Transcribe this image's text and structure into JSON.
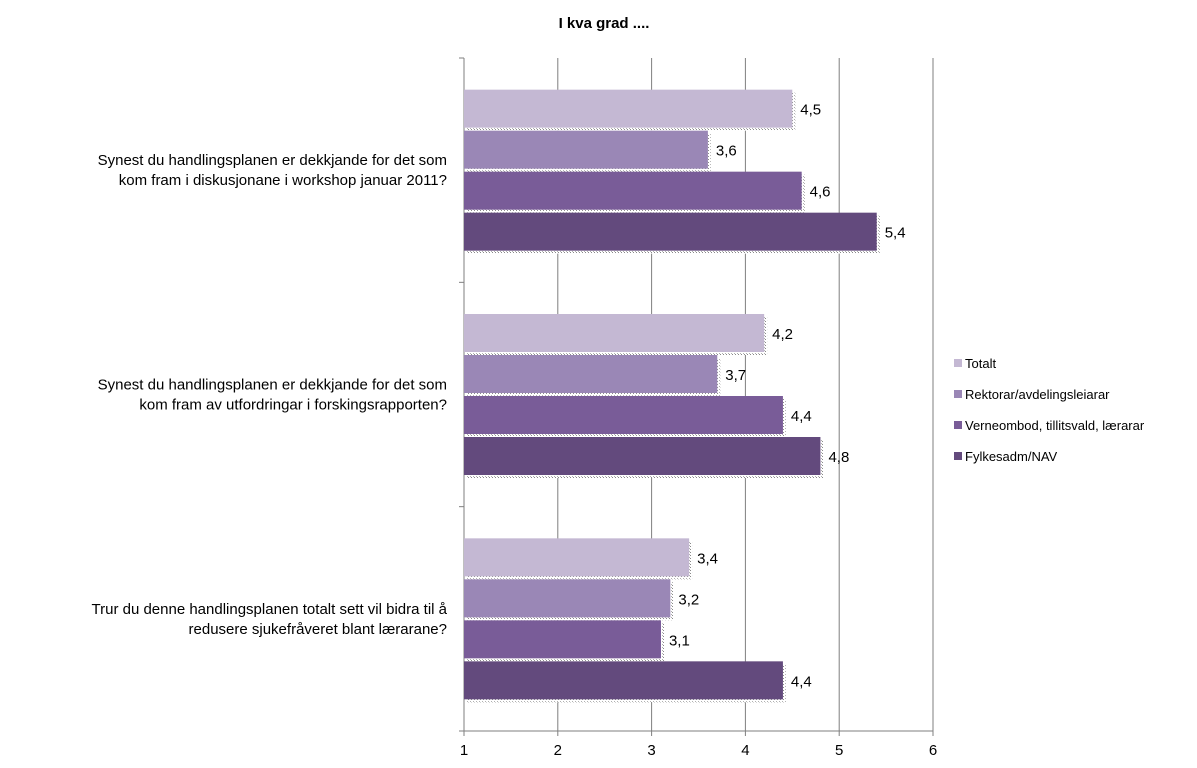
{
  "chart_data": {
    "type": "bar",
    "orientation": "horizontal",
    "title": "I kva grad ....",
    "xlabel": "",
    "ylabel": "",
    "xlim": [
      1,
      6
    ],
    "x_ticks": [
      "1",
      "2",
      "3",
      "4",
      "5",
      "6"
    ],
    "grid": true,
    "legend_position": "right",
    "categories": [
      "Synest du handlingsplanen er dekkjande for det som kom fram i diskusjonane i workshop januar 2011?",
      "Synest du handlingsplanen er dekkjande for det som kom fram av utfordringar i forskingsrapporten?",
      "Trur du denne handlingsplanen totalt sett vil bidra til å redusere sjukefråveret blant lærarane?"
    ],
    "category_lines": [
      [
        "Synest du handlingsplanen er dekkjande for det som",
        "kom fram i diskusjonane i workshop januar 2011?"
      ],
      [
        "Synest du handlingsplanen er dekkjande for det som",
        "kom fram av utfordringar i forskingsrapporten?"
      ],
      [
        "Trur du denne handlingsplanen totalt sett vil bidra til å",
        "redusere sjukefråveret blant lærarane?"
      ]
    ],
    "series": [
      {
        "name": "Totalt",
        "color": "#c4b8d3",
        "values": [
          4.5,
          4.2,
          3.4
        ],
        "labels": [
          "4,5",
          "4,2",
          "3,4"
        ]
      },
      {
        "name": "Rektorar/avdelingsleiarar",
        "color": "#9a87b6",
        "values": [
          3.6,
          3.7,
          3.2
        ],
        "labels": [
          "3,6",
          "3,7",
          "3,2"
        ]
      },
      {
        "name": "Verneombod, tillitsvald, lærarar",
        "color": "#795c98",
        "values": [
          4.6,
          4.4,
          3.1
        ],
        "labels": [
          "4,6",
          "4,4",
          "3,1"
        ]
      },
      {
        "name": "Fylkesadm/NAV",
        "color": "#634a7d",
        "values": [
          5.4,
          4.8,
          4.4
        ],
        "labels": [
          "5,4",
          "4,8",
          "4,4"
        ]
      }
    ]
  }
}
